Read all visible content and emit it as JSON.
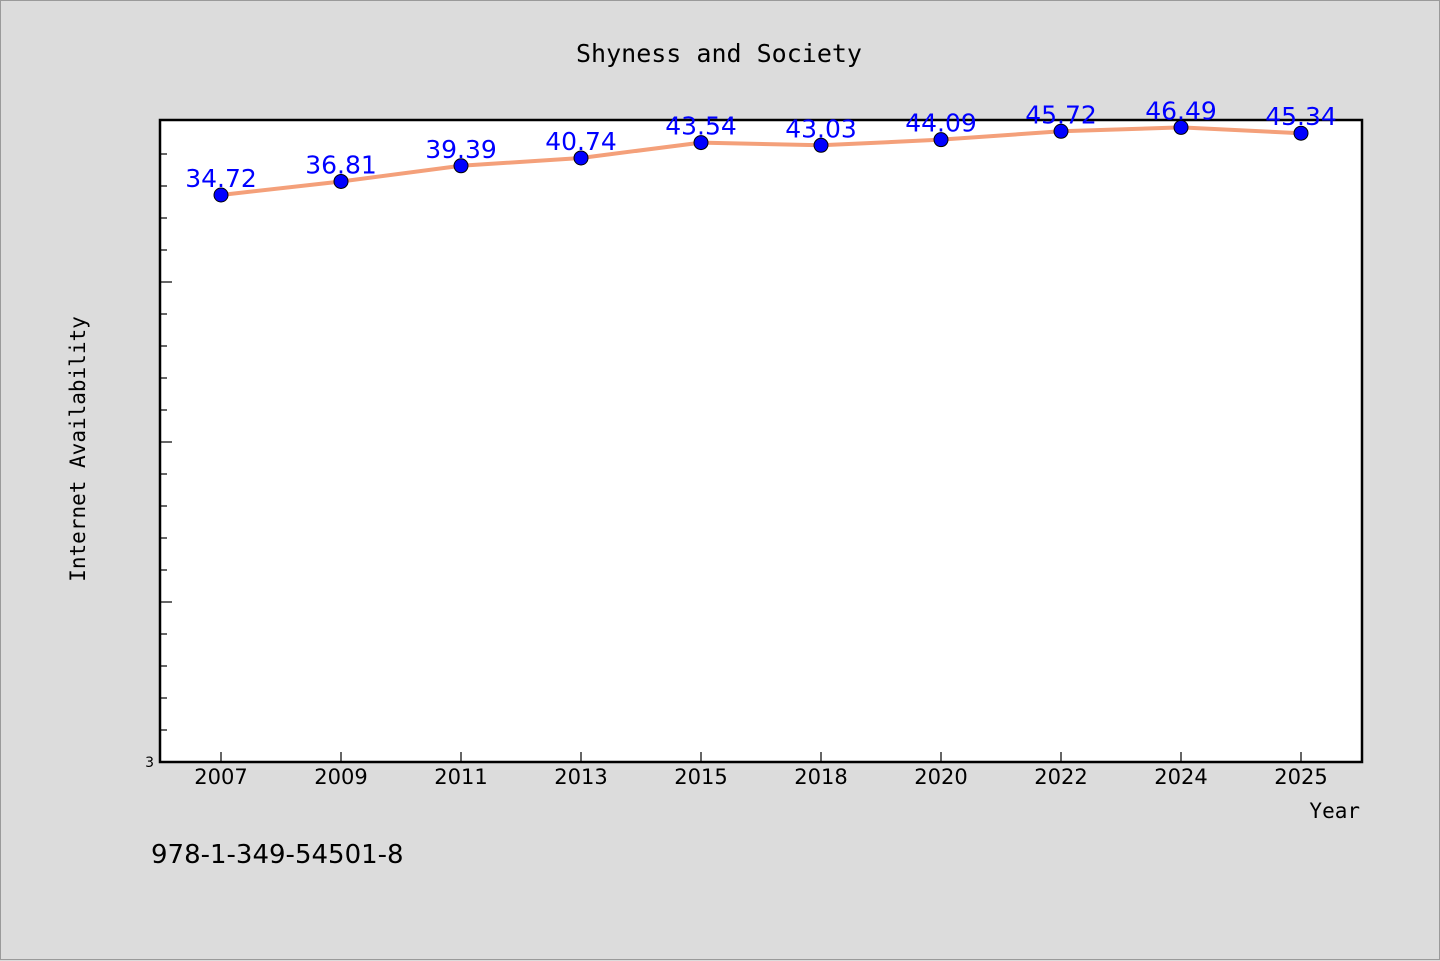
{
  "chart_data": {
    "type": "line",
    "title": "Shyness and Society",
    "xlabel": "Year",
    "ylabel": "Internet Availability",
    "categories": [
      "2007",
      "2009",
      "2011",
      "2013",
      "2015",
      "2018",
      "2020",
      "2022",
      "2024",
      "2025"
    ],
    "series": [
      {
        "values": [
          34.72,
          36.81,
          39.39,
          40.74,
          43.54,
          43.03,
          44.09,
          45.72,
          46.49,
          45.34
        ]
      }
    ],
    "y_tick_labels": [
      "3"
    ],
    "ylim": [
      3,
      48
    ],
    "ylog": true,
    "grid": false,
    "legend": "none",
    "line_color": "#f4a07a",
    "marker_color": "#0000ff",
    "label_color": "#0000ff"
  },
  "footnote": "978-1-349-54501-8"
}
